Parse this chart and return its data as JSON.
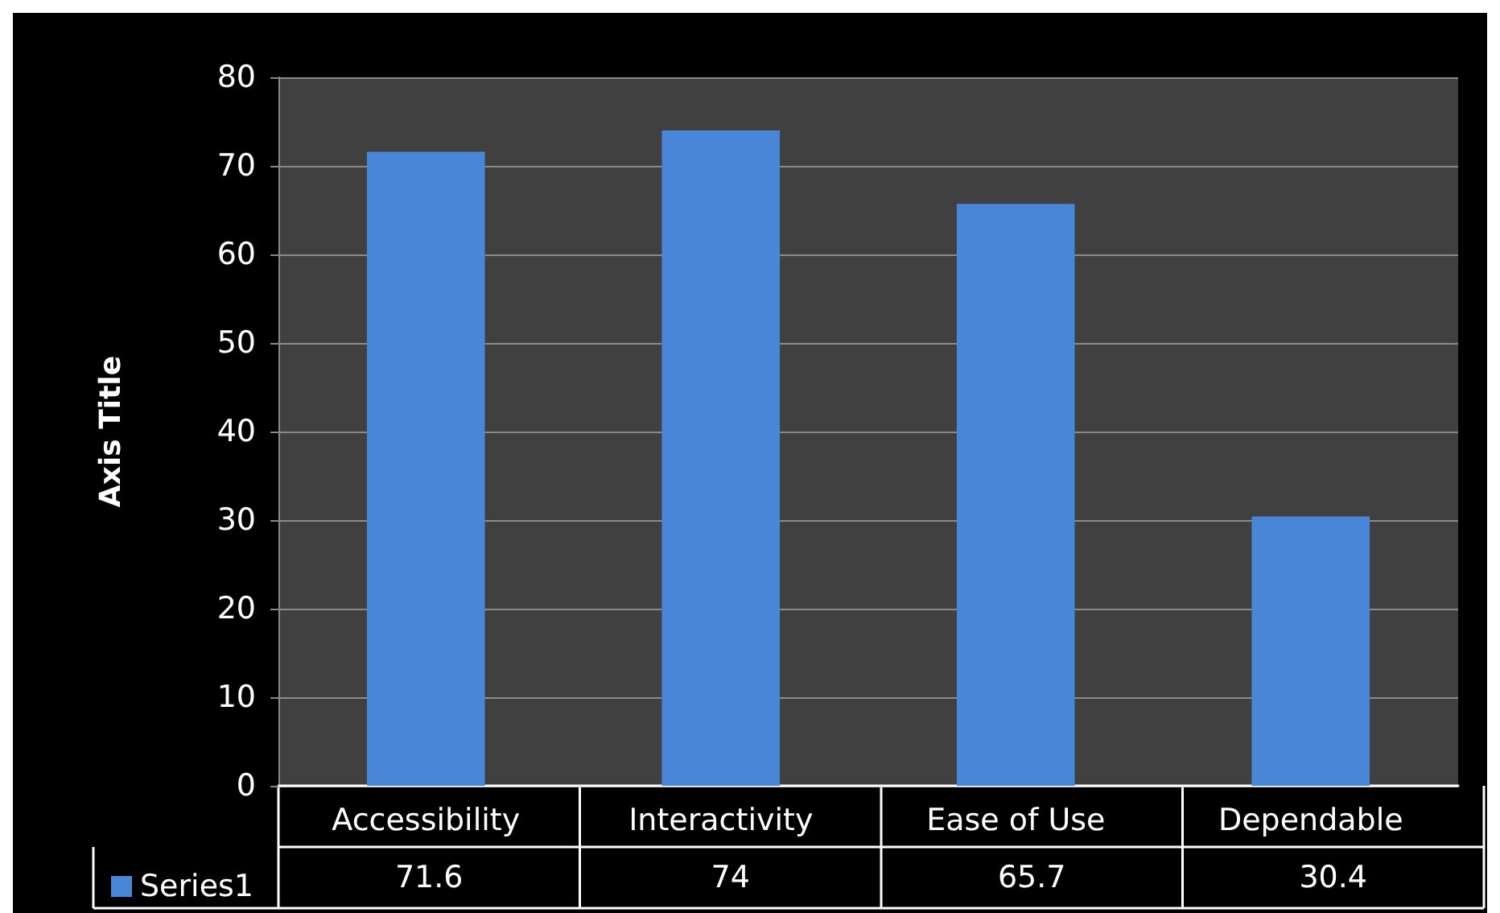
{
  "chart_data": {
    "type": "bar",
    "ylabel": "Axis Title",
    "categories": [
      "Accessibility",
      "Interactivity",
      "Ease of Use",
      "Dependable"
    ],
    "series": [
      {
        "name": "Series1",
        "color": "#4a86d8",
        "values": [
          71.6,
          74,
          65.7,
          30.4
        ]
      }
    ],
    "ylim": [
      0,
      80
    ],
    "yticks": [
      0,
      10,
      20,
      30,
      40,
      50,
      60,
      70,
      80
    ],
    "grid": "y",
    "legend": "bottom",
    "data_labels": true
  }
}
